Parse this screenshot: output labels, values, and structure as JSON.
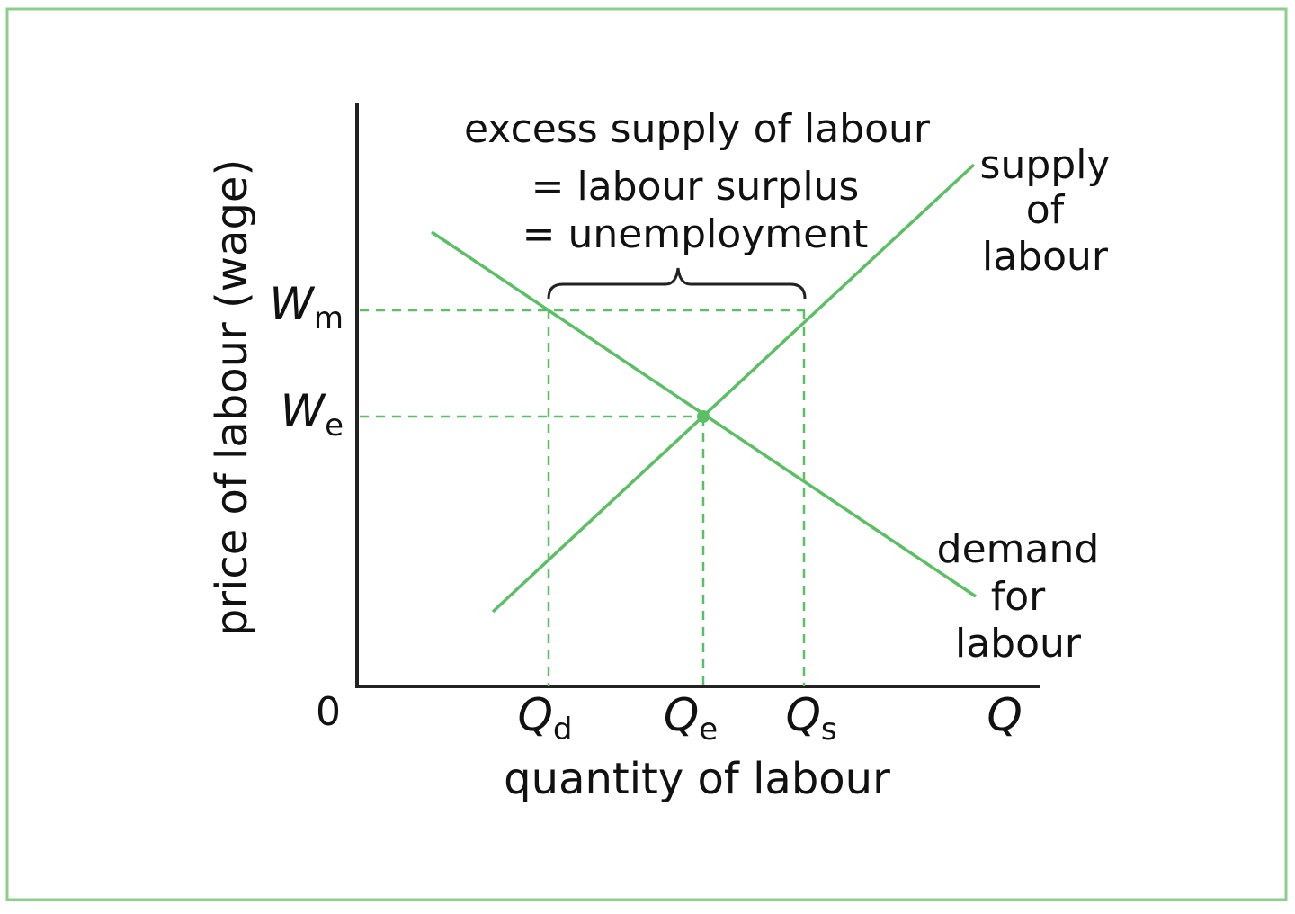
{
  "colors": {
    "curve": "#5cbf66",
    "frame": "#8ccf8c",
    "axis": "#222222",
    "text": "#111111"
  },
  "diagram": {
    "y_axis_label": "price of labour (wage)",
    "x_axis_label": "quantity of labour",
    "origin_label": "0",
    "x_end_label": "Q",
    "wage_min_symbol": "W",
    "wage_min_sub": "m",
    "wage_eq_symbol": "W",
    "wage_eq_sub": "e",
    "q_demand_symbol": "Q",
    "q_demand_sub": "d",
    "q_eq_symbol": "Q",
    "q_eq_sub": "e",
    "q_supply_symbol": "Q",
    "q_supply_sub": "s",
    "surplus_line1": "excess supply of labour",
    "surplus_line2": "= labour surplus",
    "surplus_line3": "= unemployment",
    "supply_label": [
      "supply",
      "of",
      "labour"
    ],
    "demand_label": [
      "demand",
      "for",
      "labour"
    ]
  }
}
